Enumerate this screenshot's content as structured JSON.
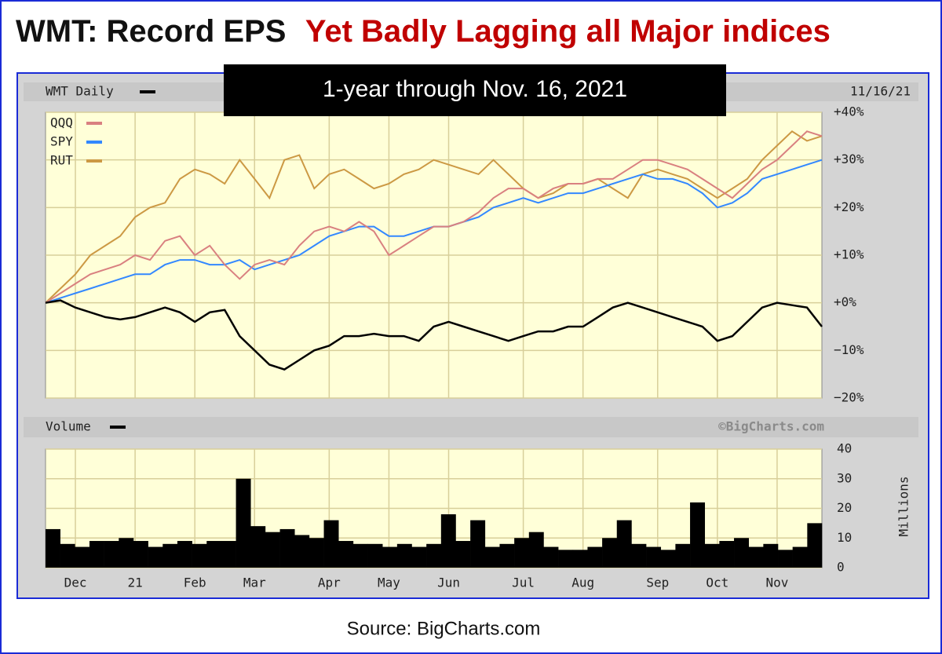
{
  "title": {
    "lead": "WMT: Record EPS",
    "accent": "Yet Badly Lagging all Major indices"
  },
  "subtitle": "1-year through Nov. 16, 2021",
  "source": "Source: BigCharts.com",
  "chart_data": [
    {
      "type": "line",
      "label": "11/16/21",
      "grid": true,
      "categories": [
        null,
        null,
        "Dec",
        null,
        null,
        null,
        "21",
        null,
        null,
        null,
        "Feb",
        null,
        null,
        null,
        "Mar",
        null,
        null,
        null,
        null,
        "Apr",
        null,
        null,
        null,
        "May",
        null,
        null,
        null,
        "Jun",
        null,
        null,
        null,
        null,
        "Jul",
        null,
        null,
        null,
        "Aug",
        null,
        null,
        null,
        null,
        "Sep",
        null,
        null,
        null,
        "Oct",
        null,
        null,
        null,
        "Nov",
        null,
        null,
        null
      ],
      "series": [
        {
          "name": "WMT Daily",
          "color": "#000000",
          "values": [
            0,
            0.5,
            -1,
            -2,
            -3,
            -3.5,
            -3,
            -2,
            -1,
            -2,
            -4,
            -2,
            -1.5,
            -7,
            -10,
            -13,
            -14,
            -12,
            -10,
            -9,
            -7,
            -7,
            -6.5,
            -7,
            -7,
            -8,
            -5,
            -4,
            -5,
            -6,
            -7,
            -8,
            -7,
            -6,
            -6,
            -5,
            -5,
            -3,
            -1,
            0,
            -1,
            -2,
            -3,
            -4,
            -5,
            -8,
            -7,
            -4,
            -1,
            0,
            -0.5,
            -1,
            -5
          ]
        },
        {
          "name": "QQQ",
          "color": "#d98080",
          "values": [
            0,
            2,
            4,
            6,
            7,
            8,
            10,
            9,
            13,
            14,
            10,
            12,
            8,
            5,
            8,
            9,
            8,
            12,
            15,
            16,
            15,
            17,
            15,
            10,
            12,
            14,
            16,
            16,
            17,
            19,
            22,
            24,
            24,
            22,
            24,
            25,
            25,
            26,
            26,
            28,
            30,
            30,
            29,
            28,
            26,
            24,
            22,
            25,
            28,
            30,
            33,
            36,
            35
          ]
        },
        {
          "name": "SPY",
          "color": "#3388ff",
          "values": [
            0,
            1,
            2,
            3,
            4,
            5,
            6,
            6,
            8,
            9,
            9,
            8,
            8,
            9,
            7,
            8,
            9,
            10,
            12,
            14,
            15,
            16,
            16,
            14,
            14,
            15,
            16,
            16,
            17,
            18,
            20,
            21,
            22,
            21,
            22,
            23,
            23,
            24,
            25,
            26,
            27,
            26,
            26,
            25,
            23,
            20,
            21,
            23,
            26,
            27,
            28,
            29,
            30
          ]
        },
        {
          "name": "RUT",
          "color": "#cc9944",
          "values": [
            0,
            3,
            6,
            10,
            12,
            14,
            18,
            20,
            21,
            26,
            28,
            27,
            25,
            30,
            26,
            22,
            30,
            31,
            24,
            27,
            28,
            26,
            24,
            25,
            27,
            28,
            30,
            29,
            28,
            27,
            30,
            27,
            24,
            22,
            23,
            25,
            25,
            26,
            24,
            22,
            27,
            28,
            27,
            26,
            24,
            22,
            24,
            26,
            30,
            33,
            36,
            34,
            35
          ]
        }
      ],
      "ylim": [
        -20,
        40
      ],
      "yticks": [
        {
          "value": -20,
          "label": "−20%"
        },
        {
          "value": -10,
          "label": "−10%"
        },
        {
          "value": 0,
          "label": "+0%"
        },
        {
          "value": 10,
          "label": "+10%"
        },
        {
          "value": 20,
          "label": "+20%"
        },
        {
          "value": 30,
          "label": "+30%"
        },
        {
          "value": 40,
          "label": "+40%"
        }
      ]
    },
    {
      "type": "bar",
      "label": "Volume",
      "watermark": "©BigCharts.com",
      "y_label": "Millions",
      "color": "#000000",
      "grid": true,
      "values": [
        13,
        8,
        7,
        9,
        9,
        10,
        9,
        7,
        8,
        9,
        8,
        9,
        9,
        30,
        14,
        12,
        13,
        11,
        10,
        16,
        9,
        8,
        8,
        7,
        8,
        7,
        8,
        18,
        9,
        16,
        7,
        8,
        10,
        12,
        7,
        6,
        6,
        7,
        10,
        16,
        8,
        7,
        6,
        8,
        22,
        8,
        9,
        10,
        7,
        8,
        6,
        7,
        15
      ],
      "ylim": [
        0,
        40
      ],
      "yticks": [
        0,
        10,
        20,
        30,
        40
      ]
    }
  ]
}
